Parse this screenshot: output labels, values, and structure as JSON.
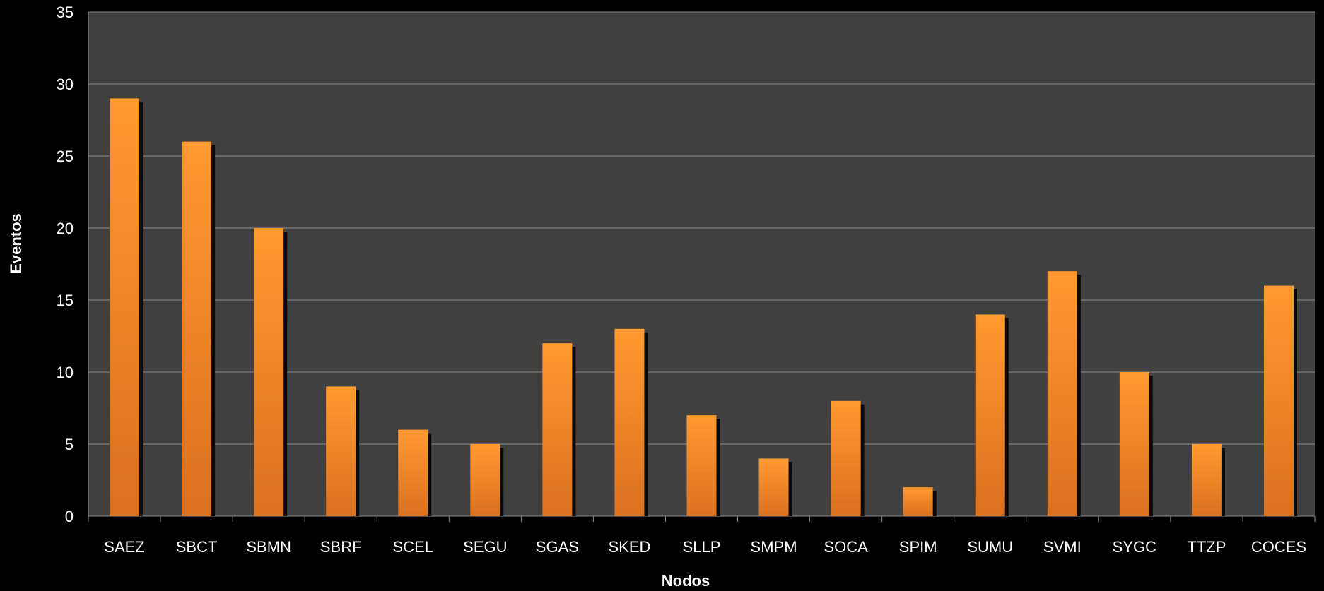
{
  "chart_data": {
    "type": "bar",
    "title": "",
    "xlabel": "Nodos",
    "ylabel": "Eventos",
    "ylim": [
      0,
      35
    ],
    "yticks": [
      0,
      5,
      10,
      15,
      20,
      25,
      30,
      35
    ],
    "grid": true,
    "legend": "none",
    "categories": [
      "SAEZ",
      "SBCT",
      "SBMN",
      "SBRF",
      "SCEL",
      "SEGU",
      "SGAS",
      "SKED",
      "SLLP",
      "SMPM",
      "SOCA",
      "SPIM",
      "SUMU",
      "SVMI",
      "SYGC",
      "TTZP",
      "COCES"
    ],
    "values": [
      29,
      26,
      20,
      9,
      6,
      5,
      12,
      13,
      7,
      4,
      8,
      2,
      14,
      17,
      10,
      5,
      16
    ],
    "colors": {
      "plot_background": "#404040",
      "page_background": "#000000",
      "bar_top": "#ff9a30",
      "bar_bottom": "#d9711f",
      "bar_shadow": "#0a0a0a",
      "gridline": "#8a8a8a",
      "text": "#ffffff"
    }
  }
}
